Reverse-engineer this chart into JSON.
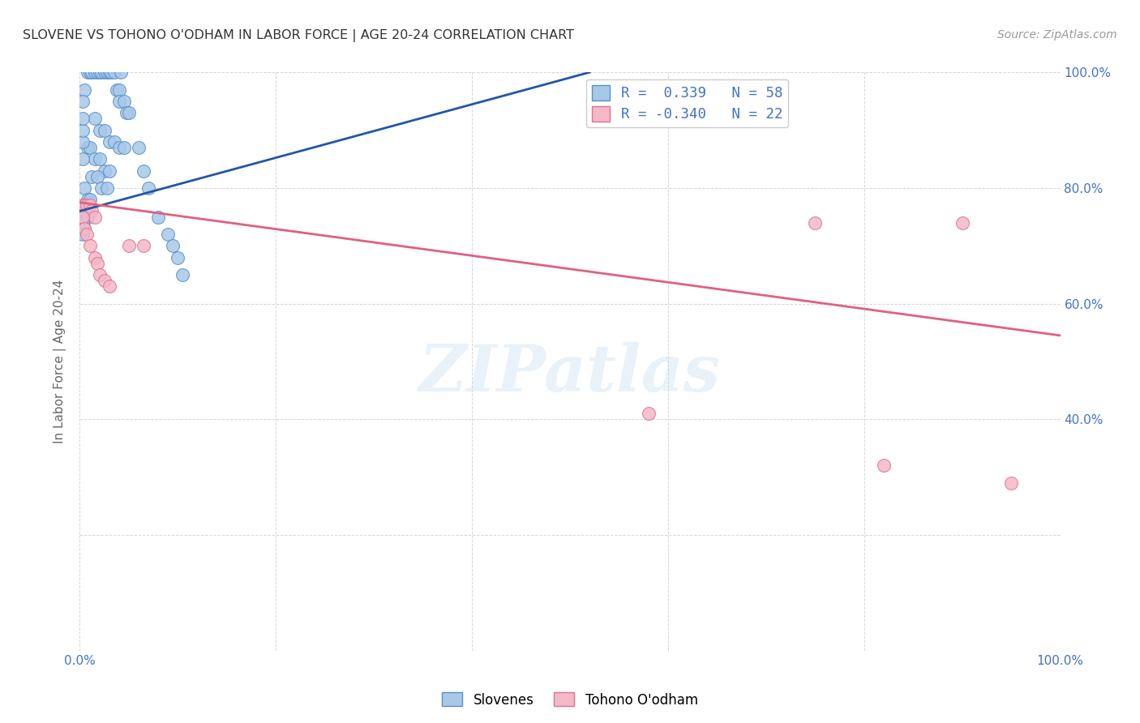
{
  "title": "SLOVENE VS TOHONO O'ODHAM IN LABOR FORCE | AGE 20-24 CORRELATION CHART",
  "source": "Source: ZipAtlas.com",
  "ylabel": "In Labor Force | Age 20-24",
  "xlim": [
    0.0,
    1.0
  ],
  "ylim": [
    0.0,
    1.0
  ],
  "watermark": "ZIPatlas",
  "legend_R1": "R =  0.339",
  "legend_N1": "N = 58",
  "legend_R2": "R = -0.340",
  "legend_N2": "N = 22",
  "blue_color": "#a8c8e8",
  "pink_color": "#f4b8c8",
  "blue_edge_color": "#5590c8",
  "pink_edge_color": "#e07090",
  "blue_line_color": "#2255aa",
  "pink_line_color": "#e06080",
  "text_color": "#4472c4",
  "grid_color": "#cccccc",
  "slovene_points": [
    [
      0.005,
      0.97
    ],
    [
      0.008,
      1.0
    ],
    [
      0.01,
      1.0
    ],
    [
      0.012,
      1.0
    ],
    [
      0.015,
      1.0
    ],
    [
      0.018,
      1.0
    ],
    [
      0.02,
      1.0
    ],
    [
      0.022,
      1.0
    ],
    [
      0.025,
      1.0
    ],
    [
      0.028,
      1.0
    ],
    [
      0.03,
      1.0
    ],
    [
      0.032,
      1.0
    ],
    [
      0.035,
      1.0
    ],
    [
      0.038,
      0.97
    ],
    [
      0.04,
      0.97
    ],
    [
      0.04,
      0.95
    ],
    [
      0.042,
      1.0
    ],
    [
      0.045,
      0.95
    ],
    [
      0.048,
      0.93
    ],
    [
      0.05,
      0.93
    ],
    [
      0.015,
      0.92
    ],
    [
      0.02,
      0.9
    ],
    [
      0.025,
      0.9
    ],
    [
      0.03,
      0.88
    ],
    [
      0.035,
      0.88
    ],
    [
      0.04,
      0.87
    ],
    [
      0.045,
      0.87
    ],
    [
      0.008,
      0.87
    ],
    [
      0.01,
      0.87
    ],
    [
      0.015,
      0.85
    ],
    [
      0.02,
      0.85
    ],
    [
      0.025,
      0.83
    ],
    [
      0.03,
      0.83
    ],
    [
      0.012,
      0.82
    ],
    [
      0.018,
      0.82
    ],
    [
      0.022,
      0.8
    ],
    [
      0.028,
      0.8
    ],
    [
      0.005,
      0.8
    ],
    [
      0.008,
      0.78
    ],
    [
      0.01,
      0.78
    ],
    [
      0.005,
      0.76
    ],
    [
      0.008,
      0.75
    ],
    [
      0.003,
      0.74
    ],
    [
      0.005,
      0.73
    ],
    [
      0.003,
      0.72
    ],
    [
      0.003,
      0.85
    ],
    [
      0.003,
      0.88
    ],
    [
      0.003,
      0.9
    ],
    [
      0.003,
      0.92
    ],
    [
      0.003,
      0.95
    ],
    [
      0.06,
      0.87
    ],
    [
      0.065,
      0.83
    ],
    [
      0.07,
      0.8
    ],
    [
      0.08,
      0.75
    ],
    [
      0.09,
      0.72
    ],
    [
      0.095,
      0.7
    ],
    [
      0.1,
      0.68
    ],
    [
      0.105,
      0.65
    ]
  ],
  "tohono_points": [
    [
      0.003,
      0.77
    ],
    [
      0.005,
      0.77
    ],
    [
      0.007,
      0.77
    ],
    [
      0.01,
      0.77
    ],
    [
      0.012,
      0.76
    ],
    [
      0.015,
      0.75
    ],
    [
      0.003,
      0.75
    ],
    [
      0.005,
      0.73
    ],
    [
      0.007,
      0.72
    ],
    [
      0.01,
      0.7
    ],
    [
      0.015,
      0.68
    ],
    [
      0.018,
      0.67
    ],
    [
      0.02,
      0.65
    ],
    [
      0.025,
      0.64
    ],
    [
      0.03,
      0.63
    ],
    [
      0.05,
      0.7
    ],
    [
      0.065,
      0.7
    ],
    [
      0.75,
      0.74
    ],
    [
      0.58,
      0.41
    ],
    [
      0.82,
      0.32
    ],
    [
      0.9,
      0.74
    ],
    [
      0.95,
      0.29
    ]
  ],
  "blue_line_x": [
    0.0,
    0.52
  ],
  "blue_line_y": [
    0.76,
    1.0
  ],
  "pink_line_x": [
    0.0,
    1.0
  ],
  "pink_line_y": [
    0.775,
    0.545
  ]
}
